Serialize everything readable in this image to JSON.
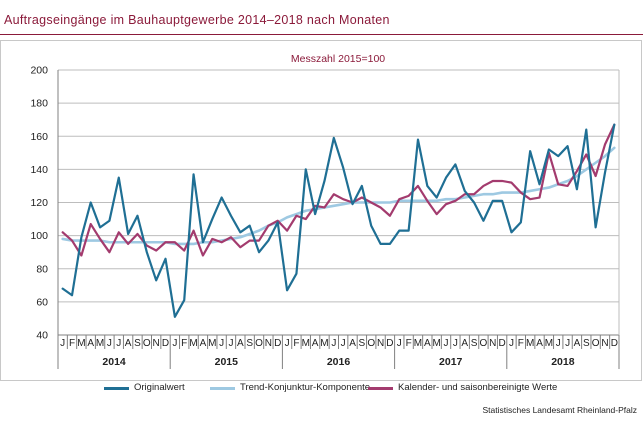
{
  "header": {
    "title": "Auftragseingänge im Bauhauptgewerbe 2014–2018 nach Monaten"
  },
  "footer": {
    "source": "Statistisches Landesamt  Rheinland-Pfalz"
  },
  "chart_data": {
    "type": "line",
    "title": "Auftragseingänge im Bauhauptgewerbe 2014–2018 nach Monaten",
    "subtitle": "Messzahl 2015=100",
    "ylim": [
      40,
      200
    ],
    "yticks": [
      40,
      60,
      80,
      100,
      120,
      140,
      160,
      180,
      200
    ],
    "grid": true,
    "legend_position": "bottom",
    "month_labels": [
      "J",
      "F",
      "M",
      "A",
      "M",
      "J",
      "J",
      "A",
      "S",
      "O",
      "N",
      "D"
    ],
    "years": [
      "2014",
      "2015",
      "2016",
      "2017",
      "2018"
    ],
    "series": [
      {
        "name": "Originalwert",
        "color": "#1f6f94",
        "values": [
          68,
          64,
          99,
          120,
          105,
          109,
          135,
          101,
          112,
          90,
          73,
          86,
          51,
          61,
          137,
          96,
          110,
          123,
          112,
          102,
          106,
          90,
          97,
          108,
          67,
          77,
          140,
          113,
          133,
          159,
          141,
          119,
          130,
          106,
          95,
          95,
          103,
          103,
          158,
          130,
          123,
          135,
          143,
          127,
          120,
          109,
          121,
          121,
          102,
          108,
          151,
          131,
          152,
          148,
          154,
          128,
          164,
          105,
          138,
          167
        ]
      },
      {
        "name": "Trend-Konjunktur-Komponente",
        "color": "#9ec9e2",
        "values": [
          98,
          97,
          97,
          97,
          97,
          96,
          96,
          96,
          96,
          96,
          96,
          96,
          95,
          95,
          95,
          96,
          96,
          97,
          98,
          99,
          101,
          103,
          106,
          108,
          111,
          113,
          115,
          116,
          117,
          118,
          119,
          120,
          120,
          120,
          120,
          120,
          121,
          121,
          121,
          121,
          121,
          122,
          122,
          123,
          124,
          125,
          125,
          126,
          126,
          126,
          127,
          128,
          129,
          131,
          133,
          136,
          140,
          144,
          148,
          153
        ]
      },
      {
        "name": "Kalender- und saisonbereinigte Werte",
        "color": "#a33b6e",
        "values": [
          102,
          97,
          88,
          107,
          98,
          90,
          102,
          95,
          101,
          94,
          91,
          96,
          96,
          91,
          103,
          88,
          98,
          96,
          99,
          93,
          97,
          97,
          106,
          109,
          103,
          112,
          110,
          118,
          117,
          125,
          122,
          120,
          123,
          120,
          117,
          112,
          122,
          124,
          130,
          121,
          113,
          119,
          121,
          125,
          125,
          130,
          133,
          133,
          132,
          126,
          122,
          123,
          150,
          131,
          130,
          139,
          149,
          136,
          155,
          167
        ]
      }
    ]
  }
}
